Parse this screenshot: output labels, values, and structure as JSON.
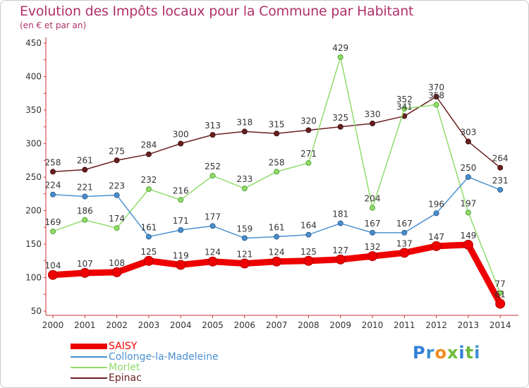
{
  "title": "Evolution des Impôts locaux pour la Commune par Habitant",
  "subtitle": "(en € et par an)",
  "logo": "Proxiti",
  "chart_data": {
    "type": "line",
    "x": [
      "2000",
      "2001",
      "2002",
      "2003",
      "2004",
      "2005",
      "2006",
      "2007",
      "2008",
      "2009",
      "2010",
      "2011",
      "2012",
      "2013",
      "2014"
    ],
    "ylim": [
      50,
      450
    ],
    "yticks": [
      50,
      100,
      150,
      200,
      250,
      300,
      350,
      400,
      450
    ],
    "grid": false,
    "legend_position": "bottom-left",
    "series": [
      {
        "name": "SAISY",
        "color": "#ee0000",
        "values": [
          104,
          107,
          108,
          125,
          119,
          124,
          121,
          124,
          125,
          127,
          132,
          137,
          147,
          149,
          61
        ]
      },
      {
        "name": "Collonge-la-Madeleine",
        "color": "#4a90d0",
        "values": [
          224,
          221,
          223,
          161,
          171,
          177,
          159,
          161,
          164,
          181,
          167,
          167,
          196,
          250,
          231
        ]
      },
      {
        "name": "Morlet",
        "color": "#8fdc6a",
        "values": [
          169,
          186,
          174,
          232,
          216,
          252,
          233,
          258,
          271,
          429,
          204,
          352,
          358,
          197,
          77
        ]
      },
      {
        "name": "Epinac",
        "color": "#6b1f1f",
        "values": [
          258,
          261,
          275,
          284,
          300,
          313,
          318,
          315,
          320,
          325,
          330,
          341,
          370,
          303,
          264
        ]
      }
    ]
  }
}
